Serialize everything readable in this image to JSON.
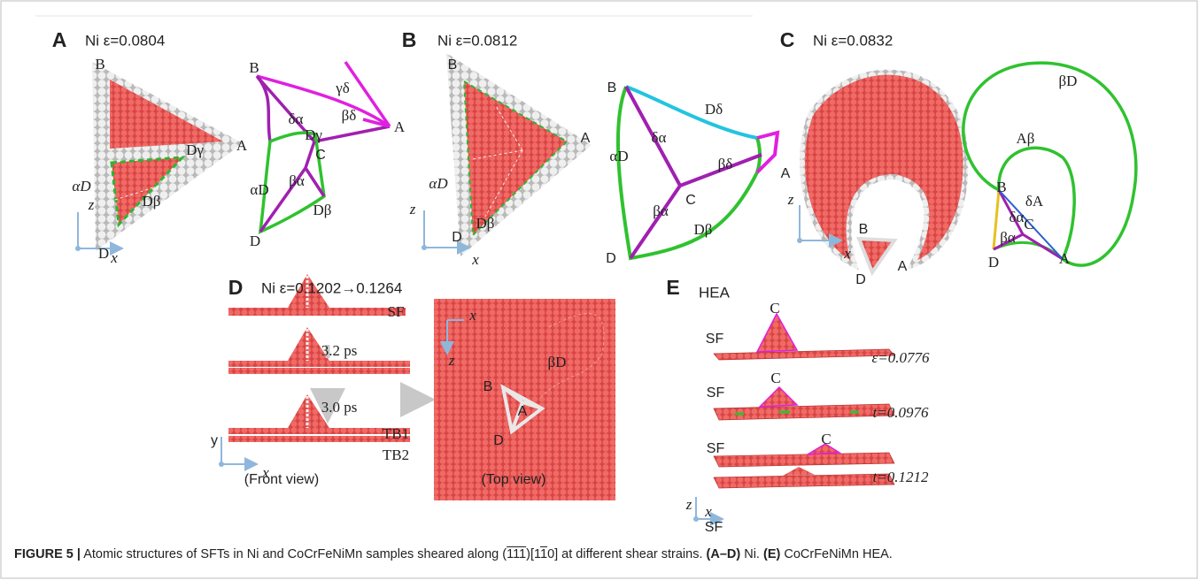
{
  "panels": [
    {
      "letter": "A",
      "title": "Ni ε=0.0804",
      "labels": [
        "B",
        "A",
        "αD",
        "Dγ",
        "Dβ",
        "D",
        "z",
        "x",
        "B",
        "γδ",
        "δα",
        "Dγ",
        "βδ",
        "A",
        "αD",
        "βα",
        "C",
        "D",
        "Dβ"
      ]
    },
    {
      "letter": "B",
      "title": "Ni ε=0.0812",
      "labels": [
        "B",
        "A",
        "αD",
        "Dβ",
        "D",
        "z",
        "x",
        "B",
        "Dδ",
        "δα",
        "βδ",
        "αD",
        "βα",
        "C",
        "A",
        "D",
        "Dβ"
      ]
    },
    {
      "letter": "C",
      "title": "Ni ε=0.0832",
      "labels": [
        "B",
        "A",
        "D",
        "z",
        "x",
        "βD",
        "Aβ",
        "B",
        "δA",
        "δα",
        "C",
        "βα",
        "A",
        "D"
      ]
    },
    {
      "letter": "D",
      "title": "Ni ε=0.1202→0.1264",
      "labels": [
        "SF",
        "3.2 ps",
        "3.0 ps",
        "TB1",
        "TB2",
        "y",
        "x",
        "(Front view)",
        "x",
        "z",
        "B",
        "A",
        "D",
        "βD",
        "(Top view)"
      ]
    },
    {
      "letter": "E",
      "title": "HEA",
      "labels": [
        "C",
        "SF",
        "ε=0.0776",
        "C",
        "SF",
        "t=0.0976",
        "C",
        "SF",
        "t=0.1212",
        "SF",
        "z",
        "x"
      ]
    }
  ],
  "caption": {
    "segments": [
      "FIGURE 5 |",
      " Atomic structures of SFTs in Ni and CoCrFeNiMn samples sheared along (",
      "111",
      ")[1",
      "1",
      "0] at different shear strains. ",
      "(A–D)",
      " Ni. ",
      "(E)",
      " CoCrFeNiMn HEA."
    ]
  }
}
